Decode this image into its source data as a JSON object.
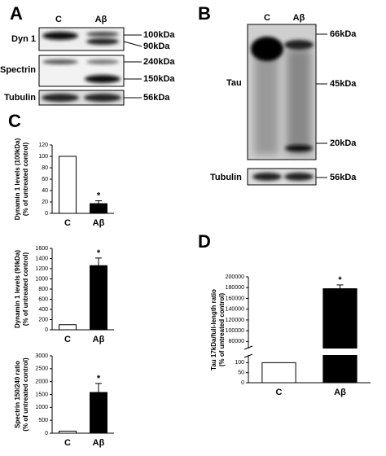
{
  "panels": [
    "A",
    "B",
    "C",
    "D"
  ],
  "blot_a": {
    "lanes": [
      "C",
      "Aβ"
    ],
    "rows": [
      {
        "name": "Dyn 1",
        "markers": [
          "100kDa",
          "90kDa"
        ]
      },
      {
        "name": "Spectrin",
        "markers": [
          "240kDa",
          "150kDa"
        ]
      },
      {
        "name": "Tubulin",
        "markers": [
          "56kDa"
        ]
      }
    ]
  },
  "blot_b": {
    "lanes": [
      "C",
      "Aβ"
    ],
    "rows": [
      {
        "name": "Tau",
        "markers": [
          "66kDa",
          "45kDa",
          "20kDa"
        ]
      },
      {
        "name": "Tubulin",
        "markers": [
          "56kDa"
        ]
      }
    ]
  },
  "chart_data": [
    {
      "type": "bar",
      "ylabel": [
        "Dynamin 1 levels (100kDa)",
        "(% of untreated control)"
      ],
      "categories": [
        "C",
        "Aβ"
      ],
      "values": [
        100,
        17
      ],
      "errors": [
        null,
        5
      ],
      "colors": [
        "#ffffff",
        "#000000"
      ],
      "annotation": "*",
      "ylim": [
        0,
        120
      ],
      "yticks": [
        0,
        20,
        40,
        60,
        80,
        100,
        120
      ]
    },
    {
      "type": "bar",
      "ylabel": [
        "Dynamin 1 levels (90kDa)",
        "(% of untreated control)"
      ],
      "categories": [
        "C",
        "Aβ"
      ],
      "values": [
        100,
        1260
      ],
      "errors": [
        null,
        150
      ],
      "colors": [
        "#ffffff",
        "#000000"
      ],
      "annotation": "*",
      "ylim": [
        0,
        1600
      ],
      "yticks": [
        0,
        200,
        400,
        600,
        800,
        1000,
        1200,
        1400,
        1600
      ]
    },
    {
      "type": "bar",
      "ylabel": [
        "Spectrin 150/240 ratio",
        "(% of untreated control)"
      ],
      "categories": [
        "C",
        "Aβ"
      ],
      "values": [
        80,
        1580
      ],
      "errors": [
        null,
        350
      ],
      "colors": [
        "#ffffff",
        "#000000"
      ],
      "annotation": "*",
      "ylim": [
        0,
        3000
      ],
      "yticks": [
        0,
        500,
        1000,
        1500,
        2000,
        2500,
        3000
      ]
    },
    {
      "type": "bar",
      "ylabel": [
        "Tau 17kDa/full-length ratio",
        "(% of untreated control)"
      ],
      "categories": [
        "C",
        "Aβ"
      ],
      "values": [
        100,
        178000
      ],
      "errors": [
        null,
        7000
      ],
      "colors": [
        "#ffffff",
        "#000000"
      ],
      "annotation": "*",
      "ylim": [
        0,
        200000
      ],
      "axis_break": [
        130,
        70000
      ],
      "yticks": [
        0,
        50,
        100,
        80000,
        100000,
        120000,
        140000,
        160000,
        180000,
        200000
      ]
    }
  ]
}
